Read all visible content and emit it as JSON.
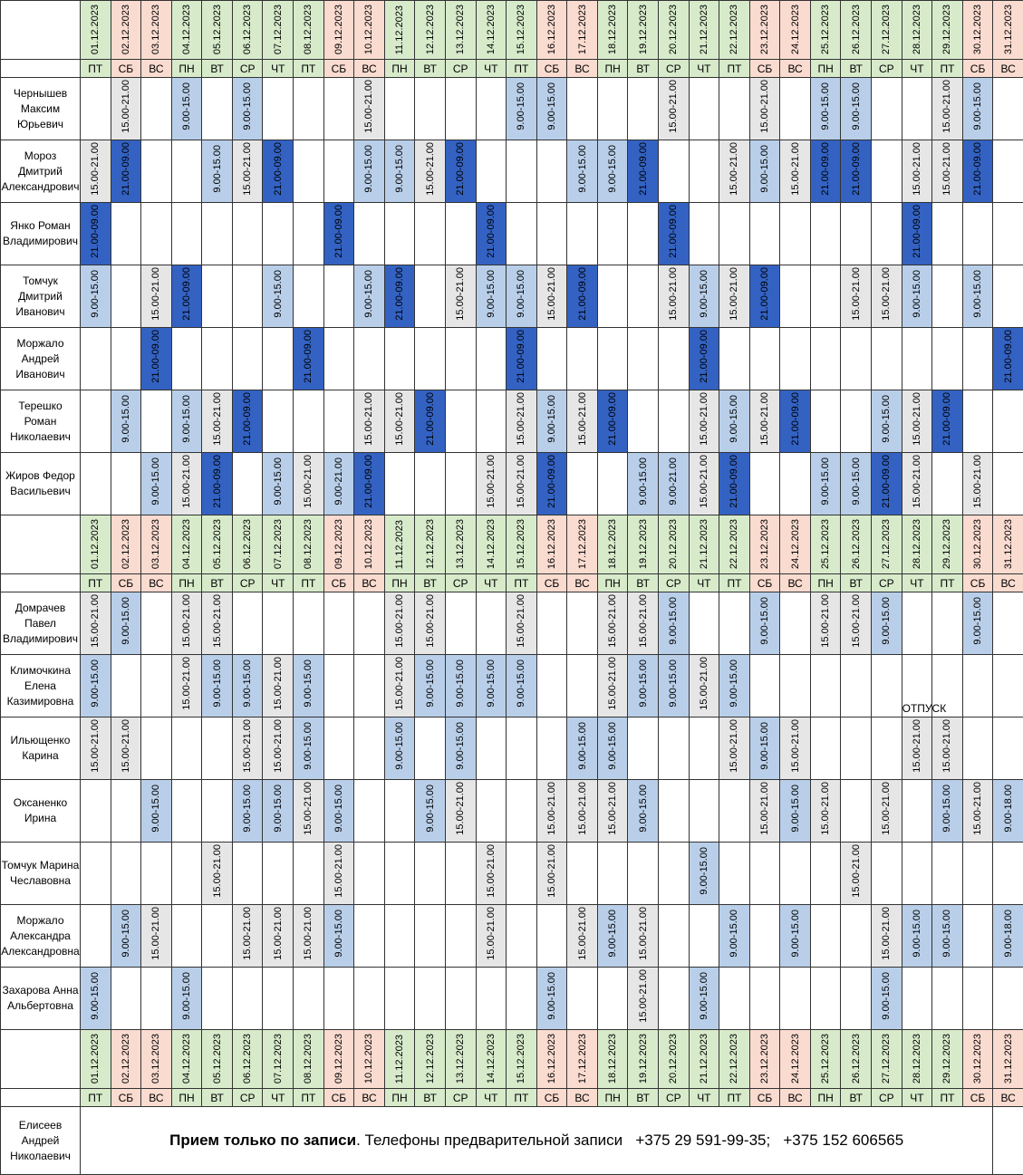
{
  "dates": [
    "01.12.2023",
    "02.12.2023",
    "03.12.2023",
    "04.12.2023",
    "05.12.2023",
    "06.12.2023",
    "07.12.2023",
    "08.12.2023",
    "09.12.2023",
    "10.12.2023",
    "11.12.2023",
    "12.12.2023",
    "13.12.2023",
    "14.12.2023",
    "15.12.2023",
    "16.12.2023",
    "17.12.2023",
    "18.12.2023",
    "19.12.2023",
    "20.12.2023",
    "21.12.2023",
    "22.12.2023",
    "23.12.2023",
    "24.12.2023",
    "25.12.2023",
    "26.12.2023",
    "27.12.2023",
    "28.12.2023",
    "29.12.2023",
    "30.12.2023",
    "31.12.2023"
  ],
  "weekdays": [
    "ПТ",
    "СБ",
    "ВС",
    "ПН",
    "ВТ",
    "СР",
    "ЧТ",
    "ПТ",
    "СБ",
    "ВС",
    "ПН",
    "ВТ",
    "СР",
    "ЧТ",
    "ПТ",
    "СБ",
    "ВС",
    "ПН",
    "ВТ",
    "СР",
    "ЧТ",
    "ПТ",
    "СБ",
    "ВС",
    "ПН",
    "ВТ",
    "СР",
    "ЧТ",
    "ПТ",
    "СБ",
    "ВС"
  ],
  "colors": {
    "weekday_header": "#d7ebcb",
    "weekend_header": "#fadbd0",
    "shift_9_15": "#b9cfe9",
    "shift_15_21": "#e6e6e6",
    "shift_night": "#3362c3"
  },
  "blocks": [
    {
      "staff": [
        {
          "name": "Чернышев Максим Юрьевич",
          "shifts": {
            "2": "15.00-21.00",
            "4": "9.00-15.00",
            "6": "9.00-15.00",
            "10": "15.00-21.00",
            "15": "9.00-15.00",
            "16": "9.00-15.00",
            "20": "15.00-21.00",
            "23": "15.00-21.00",
            "25": "9.00-15.00",
            "26": "9.00-15.00",
            "29": "15.00-21.00",
            "30": "9.00-15.00"
          }
        },
        {
          "name": "Мороз Дмитрий Александрович",
          "shifts": {
            "1": "15.00-21.00",
            "2": "21.00-09.00",
            "5": "9.00-15.00",
            "6": "15.00-21.00",
            "7": "21.00-09.00",
            "10": "9.00-15.00",
            "11": "9.00-15.00",
            "12": "15.00-21.00",
            "13": "21.00-09.00",
            "17": "9.00-15.00",
            "18": "9.00-15.00",
            "19": "21.00-09.00",
            "22": "15.00-21.00",
            "23": "9.00-15.00",
            "24": "15.00-21.00",
            "25": "21.00-09.00",
            "26": "21.00-09.00",
            "28": "15.00-21.00",
            "29": "15.00-21.00",
            "30": "21.00-09.00"
          }
        },
        {
          "name": "Янко Роман Владимирович",
          "shifts": {
            "1": "21.00-09.00",
            "9": "21.00-09.00",
            "14": "21.00-09.00",
            "20": "21.00-09.00",
            "28": "21.00-09.00"
          }
        },
        {
          "name": "Томчук Дмитрий Иванович",
          "shifts": {
            "1": "9.00-15.00",
            "3": "15.00-21.00",
            "4": "21.00-09.00",
            "7": "9.00-15.00",
            "10": "9.00-15.00",
            "11": "21.00-09.00",
            "13": "15.00-21.00",
            "14": "9.00-15.00",
            "15": "9.00-15.00",
            "16": "15.00-21.00",
            "17": "21.00-09.00",
            "20": "15.00-21.00",
            "21": "9.00-15.00",
            "22": "15.00-21.00",
            "23": "21.00-09.00",
            "26": "15.00-21.00",
            "27": "15.00-21.00",
            "28": "9.00-15.00",
            "30": "9.00-15.00"
          }
        },
        {
          "name": "Моржало Андрей Иванович",
          "shifts": {
            "3": "21.00-09.00",
            "8": "21.00-09.00",
            "15": "21.00-09.00",
            "21": "21.00-09.00",
            "31": "21.00-09.00"
          }
        },
        {
          "name": "Терешко Роман Николаевич",
          "shifts": {
            "2": "9.00-15.00",
            "4": "9.00-15.00",
            "5": "15.00-21.00",
            "6": "21.00-09.00",
            "10": "15.00-21.00",
            "11": "15.00-21.00",
            "12": "21.00-09.00",
            "15": "15.00-21.00",
            "16": "9.00-15.00",
            "17": "15.00-21.00",
            "18": "21.00-09.00",
            "21": "15.00-21.00",
            "22": "9.00-15.00",
            "23": "15.00-21.00",
            "24": "21.00-09.00",
            "27": "9.00-15.00",
            "28": "15.00-21.00",
            "29": "21.00-09.00"
          }
        },
        {
          "name": "Жиров Федор Васильевич",
          "shifts": {
            "3": "9.00-15.00",
            "4": "15.00-21.00",
            "5": "21.00-09.00",
            "7": "9.00-15.00",
            "8": "15.00-21.00",
            "9": "9.00-21.00",
            "10": "21.00-09.00",
            "14": "15.00-21.00",
            "15": "15.00-21.00",
            "16": "21.00-09.00",
            "19": "9.00-15.00",
            "20": "9.00-21.00",
            "21": "15.00-21.00",
            "22": "21.00-09.00",
            "25": "9.00-15.00",
            "26": "9.00-15.00",
            "27": "21.00-09.00",
            "28": "15.00-21.00",
            "30": "15.00-21.00"
          }
        }
      ]
    },
    {
      "staff": [
        {
          "name": "Домрачев Павел Владимирович",
          "shifts": {
            "1": "15.00-21.00",
            "2": "9.00-15.00",
            "4": "15.00-21.00",
            "5": "15.00-21.00",
            "11": "15.00-21.00",
            "12": "15.00-21.00",
            "15": "15.00-21.00",
            "18": "15.00-21.00",
            "19": "15.00-21.00",
            "20": "9.00-15.00",
            "23": "9.00-15.00",
            "25": "15.00-21.00",
            "26": "15.00-21.00",
            "27": "9.00-15.00",
            "30": "9.00-15.00"
          }
        },
        {
          "name": "Климочкина Елена Казимировна",
          "shifts": {
            "1": "9.00-15.00",
            "4": "15.00-21.00",
            "5": "9.00-15.00",
            "6": "9.00-15.00",
            "7": "15.00-21.00",
            "8": "9.00-15.00",
            "11": "15.00-21.00",
            "12": "9.00-15.00",
            "13": "9.00-15.00",
            "14": "9.00-15.00",
            "15": "9.00-15.00",
            "18": "15.00-21.00",
            "19": "9.00-15.00",
            "20": "9.00-15.00",
            "21": "15.00-21.00",
            "22": "9.00-15.00"
          },
          "note": "ОТПУСК",
          "note_col": "28"
        },
        {
          "name": "Ильющенко Карина",
          "shifts": {
            "1": "15.00-21.00",
            "2": "15.00-21.00",
            "6": "15.00-21.00",
            "7": "15.00-21.00",
            "8": "9.00-15.00",
            "11": "9.00-15.00",
            "13": "9.00-15.00",
            "17": "9.00-15.00",
            "18": "9.00-15.00",
            "22": "15.00-21.00",
            "23": "9.00-15.00",
            "24": "15.00-21.00",
            "28": "15.00-21.00",
            "29": "15.00-21.00"
          }
        },
        {
          "name": "Оксаненко Ирина",
          "shifts": {
            "3": "9.00-15.00",
            "6": "9.00-15.00",
            "7": "9.00-15.00",
            "8": "15.00-21.00",
            "9": "9.00-15.00",
            "12": "9.00-15.00",
            "13": "15.00-21.00",
            "16": "15.00-21.00",
            "17": "15.00-21.00",
            "18": "15.00-21.00",
            "19": "9.00-15.00",
            "23": "15.00-21.00",
            "24": "9.00-15.00",
            "25": "15.00-21.00",
            "27": "15.00-21.00",
            "29": "9.00-15.00",
            "30": "15.00-21.00",
            "31": "9.00-18.00"
          }
        },
        {
          "name": "Томчук Марина Чеславовна",
          "shifts": {
            "5": "15.00-21.00",
            "9": "15.00-21.00",
            "14": "15.00-21.00",
            "16": "15.00-21.00",
            "21": "9.00-15.00",
            "26": "15.00-21.00"
          }
        },
        {
          "name": "Моржало Александра Александровна",
          "shifts": {
            "2": "9.00-15.00",
            "3": "15.00-21.00",
            "6": "15.00-21.00",
            "7": "15.00-21.00",
            "8": "15.00-21.00",
            "9": "9.00-15.00",
            "14": "15.00-21.00",
            "17": "15.00-21.00",
            "18": "9.00-15.00",
            "19": "15.00-21.00",
            "22": "9.00-15.00",
            "24": "9.00-15.00",
            "27": "15.00-21.00",
            "28": "9.00-15.00",
            "29": "9.00-15.00",
            "31": "9.00-18.00"
          }
        },
        {
          "name": "Захарова Анна Альбертовна",
          "shifts": {
            "1": "9.00-15.00",
            "4": "9.00-15.00",
            "16": "9.00-15.00",
            "19": "15.00-21.00",
            "21": "9.00-15.00",
            "27": "9.00-15.00"
          }
        }
      ]
    }
  ],
  "footer": {
    "name": "Елисеев Андрей Николаевич",
    "bold": "Прием только по записи",
    "rest": ". Телефоны предварительной записи   +375 29 591-99-35;   +375 152 606565"
  }
}
